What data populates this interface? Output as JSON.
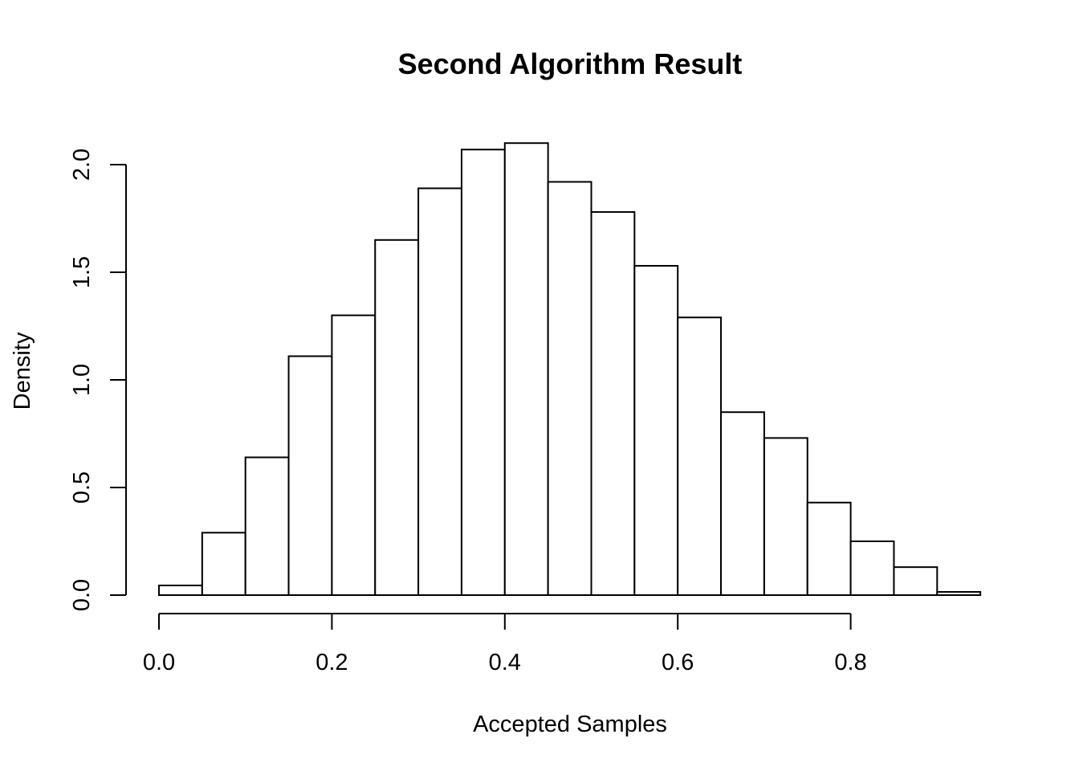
{
  "chart_data": {
    "type": "histogram",
    "title": "Second Algorithm Result",
    "xlabel": "Accepted Samples",
    "ylabel": "Density",
    "bin_edges": [
      0.0,
      0.05,
      0.1,
      0.15,
      0.2,
      0.25,
      0.3,
      0.35,
      0.4,
      0.45,
      0.5,
      0.55,
      0.6,
      0.65,
      0.7,
      0.75,
      0.8,
      0.85,
      0.9,
      0.95
    ],
    "values": [
      0.045,
      0.29,
      0.64,
      1.11,
      1.3,
      1.65,
      1.89,
      2.07,
      2.1,
      1.92,
      1.78,
      1.53,
      1.29,
      0.85,
      0.73,
      0.43,
      0.25,
      0.13,
      0.015
    ],
    "xlim": [
      0.0,
      0.95
    ],
    "ylim": [
      0.0,
      2.1
    ],
    "x_ticks": [
      0.0,
      0.2,
      0.4,
      0.6,
      0.8
    ],
    "x_tick_labels": [
      "0.0",
      "0.2",
      "0.4",
      "0.6",
      "0.8"
    ],
    "y_ticks": [
      0.0,
      0.5,
      1.0,
      1.5,
      2.0
    ],
    "y_tick_labels": [
      "0.0",
      "0.5",
      "1.0",
      "1.5",
      "2.0"
    ],
    "grid": false,
    "legend": "none",
    "bar_fill": "#ffffff",
    "bar_stroke": "#000000"
  }
}
